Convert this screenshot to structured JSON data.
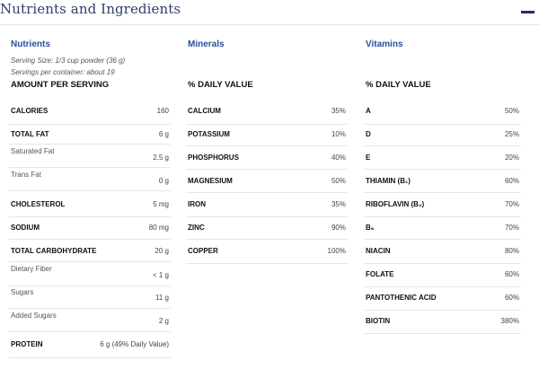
{
  "header": {
    "title": "Nutrients and Ingredients",
    "collapse_icon": "minus-icon"
  },
  "nutrients": {
    "title": "Nutrients",
    "serving_size": "Serving Size: 1/3 cup powder (36 g)",
    "servings_per_container": "Servings per container: about 19",
    "subhead": "AMOUNT PER SERVING",
    "rows": [
      {
        "label": "CALORIES",
        "value": "160",
        "bold": true
      },
      {
        "label": "TOTAL FAT",
        "value": "6 g",
        "bold": true
      },
      {
        "label": "Saturated Fat",
        "value": "2.5 g",
        "bold": false
      },
      {
        "label": "Trans Fat",
        "value": "0 g",
        "bold": false
      },
      {
        "label": "CHOLESTEROL",
        "value": "5 mg",
        "bold": true
      },
      {
        "label": "SODIUM",
        "value": "80 mg",
        "bold": true
      },
      {
        "label": "TOTAL CARBOHYDRATE",
        "value": "20 g",
        "bold": true
      },
      {
        "label": "Dietary Fiber",
        "value": "< 1 g",
        "bold": false
      },
      {
        "label": "Sugars",
        "value": "11 g",
        "bold": false
      },
      {
        "label": "Added Sugars",
        "value": "2 g",
        "bold": false
      },
      {
        "label": "PROTEIN",
        "value": "6 g (49% Daily Value)",
        "bold": true
      }
    ]
  },
  "minerals": {
    "title": "Minerals",
    "subhead": "% DAILY VALUE",
    "rows": [
      {
        "label": "CALCIUM",
        "value": "35%"
      },
      {
        "label": "POTASSIUM",
        "value": "10%"
      },
      {
        "label": "PHOSPHORUS",
        "value": "40%"
      },
      {
        "label": "MAGNESIUM",
        "value": "50%"
      },
      {
        "label": "IRON",
        "value": "35%"
      },
      {
        "label": "ZINC",
        "value": "90%"
      },
      {
        "label": "COPPER",
        "value": "100%"
      }
    ]
  },
  "vitamins": {
    "title": "Vitamins",
    "subhead": "% DAILY VALUE",
    "rows": [
      {
        "label": "A",
        "value": "50%"
      },
      {
        "label": "D",
        "value": "25%"
      },
      {
        "label": "E",
        "value": "20%"
      },
      {
        "label": "THIAMIN (B₁)",
        "value": "60%"
      },
      {
        "label": "RIBOFLAVIN (B₂)",
        "value": "70%"
      },
      {
        "label": "B₆",
        "value": "70%"
      },
      {
        "label": "NIACIN",
        "value": "80%"
      },
      {
        "label": "FOLATE",
        "value": "60%"
      },
      {
        "label": "PANTOTHENIC ACID",
        "value": "60%"
      },
      {
        "label": "BIOTIN",
        "value": "380%"
      }
    ]
  }
}
